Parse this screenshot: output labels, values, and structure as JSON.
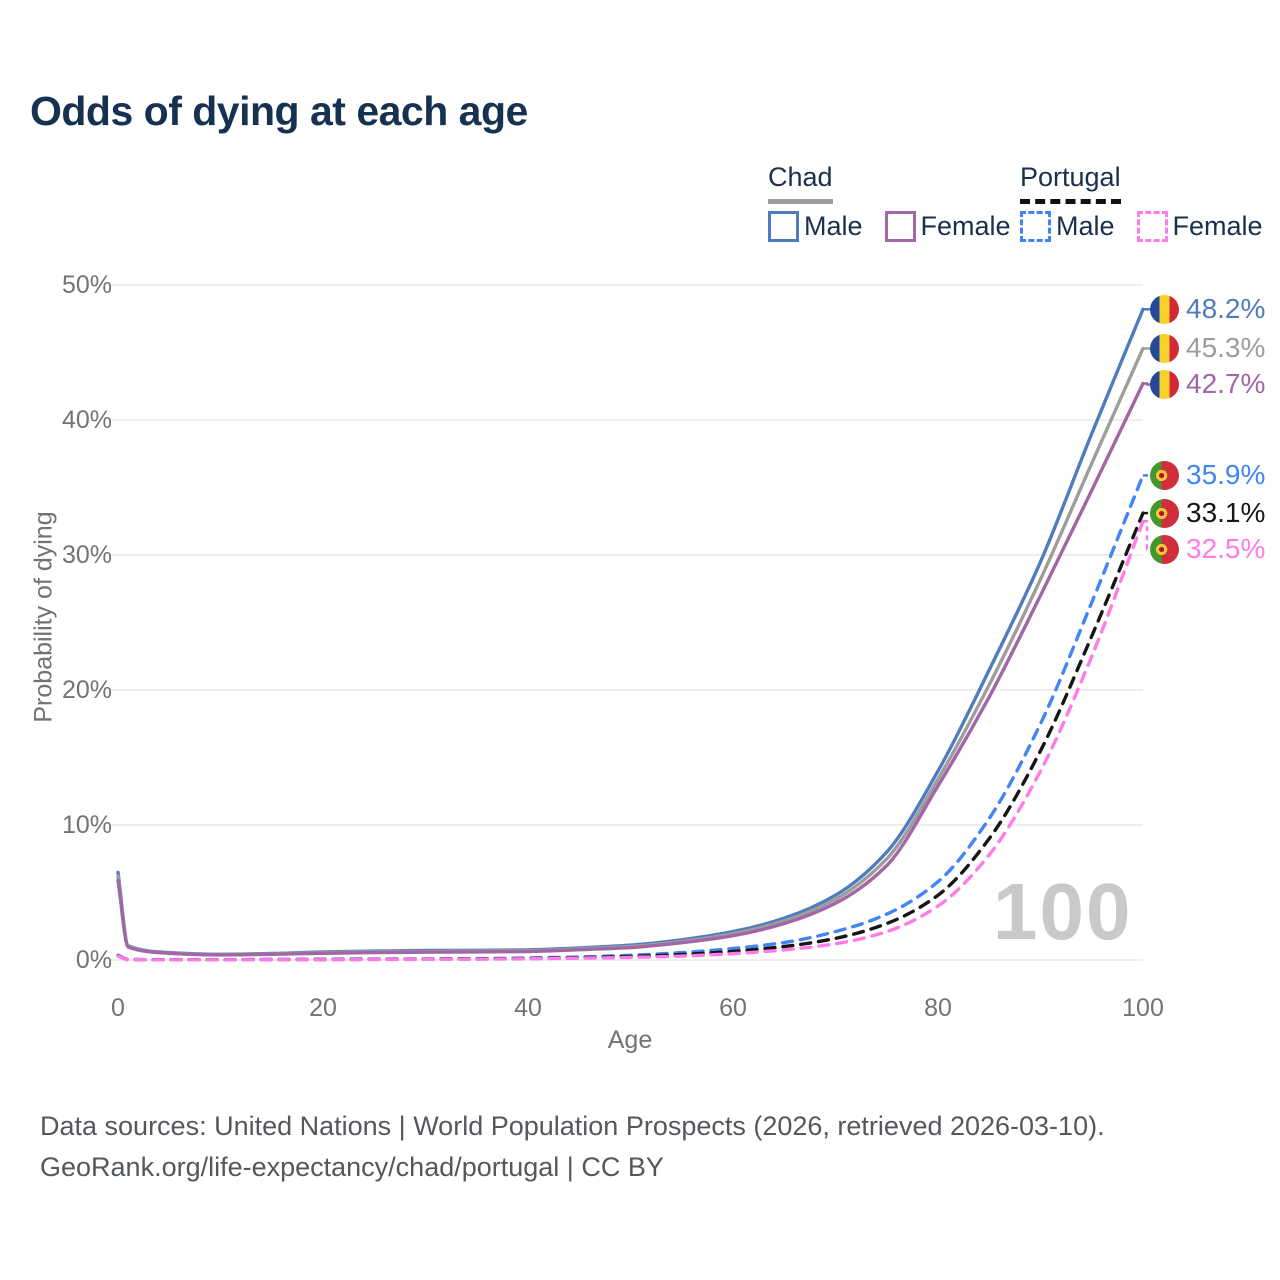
{
  "title": "Odds of dying at each age",
  "watermark": "100",
  "legend": {
    "groups": [
      {
        "country": "Chad",
        "underline": "solid",
        "items": [
          {
            "label": "Male",
            "color": "#4f7cbe",
            "dash": "solid"
          },
          {
            "label": "Female",
            "color": "#a266a6",
            "dash": "solid"
          }
        ]
      },
      {
        "country": "Portugal",
        "underline": "dashed",
        "items": [
          {
            "label": "Male",
            "color": "#4285f4",
            "dash": "dashed"
          },
          {
            "label": "Female",
            "color": "#ff7ce8",
            "dash": "dashed"
          }
        ]
      }
    ]
  },
  "chart_data": {
    "type": "line",
    "title": "Odds of dying at each age",
    "xlabel": "Age",
    "ylabel": "Probability of dying",
    "xlim": [
      0,
      100
    ],
    "ylim": [
      0,
      50
    ],
    "x_ticks": [
      "0",
      "20",
      "40",
      "60",
      "80",
      "100"
    ],
    "x_tick_values": [
      0,
      20,
      40,
      60,
      80,
      100
    ],
    "y_ticks": [
      "0%",
      "10%",
      "20%",
      "30%",
      "40%",
      "50%"
    ],
    "y_tick_values": [
      0,
      10,
      20,
      30,
      40,
      50
    ],
    "grid": "horizontal",
    "legend_position": "top-right",
    "x": [
      0,
      1,
      5,
      10,
      15,
      20,
      25,
      30,
      35,
      40,
      45,
      50,
      55,
      60,
      65,
      70,
      75,
      80,
      85,
      90,
      95,
      100
    ],
    "series": [
      {
        "name": "Chad Male",
        "country": "Chad",
        "flag": "chad",
        "color": "#4f7cbe",
        "style": "solid",
        "end_label": "48.2%",
        "values": [
          6.5,
          1.05,
          0.55,
          0.42,
          0.48,
          0.6,
          0.66,
          0.7,
          0.72,
          0.75,
          0.9,
          1.1,
          1.5,
          2.1,
          3.1,
          4.8,
          8.0,
          14.0,
          21.5,
          29.5,
          39.0,
          48.2
        ]
      },
      {
        "name": "Chad (both sexes)",
        "country": "Chad",
        "flag": "chad",
        "color": "#9d9d9d",
        "style": "solid",
        "end_label": "45.3%",
        "values": [
          6.2,
          1.0,
          0.52,
          0.4,
          0.45,
          0.55,
          0.61,
          0.64,
          0.66,
          0.69,
          0.83,
          1.0,
          1.38,
          1.95,
          2.9,
          4.5,
          7.5,
          13.4,
          20.4,
          28.2,
          36.8,
          45.3
        ]
      },
      {
        "name": "Chad Female",
        "country": "Chad",
        "flag": "chad",
        "color": "#a266a6",
        "style": "solid",
        "end_label": "42.7%",
        "values": [
          5.9,
          0.95,
          0.5,
          0.38,
          0.42,
          0.5,
          0.55,
          0.58,
          0.6,
          0.63,
          0.76,
          0.92,
          1.28,
          1.8,
          2.7,
          4.2,
          7.0,
          12.9,
          19.5,
          27.0,
          34.8,
          42.7
        ]
      },
      {
        "name": "Portugal Male",
        "country": "Portugal",
        "flag": "portugal",
        "color": "#4285f4",
        "style": "dashed",
        "end_label": "35.9%",
        "values": [
          0.35,
          0.04,
          0.02,
          0.02,
          0.04,
          0.06,
          0.07,
          0.08,
          0.1,
          0.15,
          0.22,
          0.35,
          0.55,
          0.85,
          1.3,
          2.1,
          3.4,
          5.8,
          10.5,
          17.5,
          26.5,
          35.9
        ]
      },
      {
        "name": "Portugal (both sexes)",
        "country": "Portugal",
        "flag": "portugal",
        "color": "#161616",
        "style": "dashed",
        "end_label": "33.1%",
        "values": [
          0.32,
          0.035,
          0.02,
          0.02,
          0.03,
          0.04,
          0.05,
          0.06,
          0.08,
          0.11,
          0.17,
          0.26,
          0.41,
          0.64,
          1.0,
          1.6,
          2.7,
          4.8,
          9.0,
          15.5,
          24.0,
          33.1
        ]
      },
      {
        "name": "Portugal Female",
        "country": "Portugal",
        "flag": "portugal",
        "color": "#ff7ce8",
        "style": "dashed",
        "end_label": "32.5%",
        "values": [
          0.3,
          0.03,
          0.015,
          0.015,
          0.02,
          0.03,
          0.04,
          0.05,
          0.06,
          0.09,
          0.13,
          0.19,
          0.29,
          0.47,
          0.75,
          1.2,
          2.1,
          4.0,
          7.8,
          14.0,
          22.5,
          32.5
        ]
      }
    ]
  },
  "footer": {
    "line1": "Data sources: United Nations | World Population Prospects (2026, retrieved 2026-03-10).",
    "line2": "GeoRank.org/life-expectancy/chad/portugal | CC BY"
  },
  "colors": {
    "title": "#163250",
    "axis_text": "#737373",
    "gridline": "#e9e9e9",
    "watermark": "#c9c9c9",
    "footer_text": "#54585d"
  }
}
